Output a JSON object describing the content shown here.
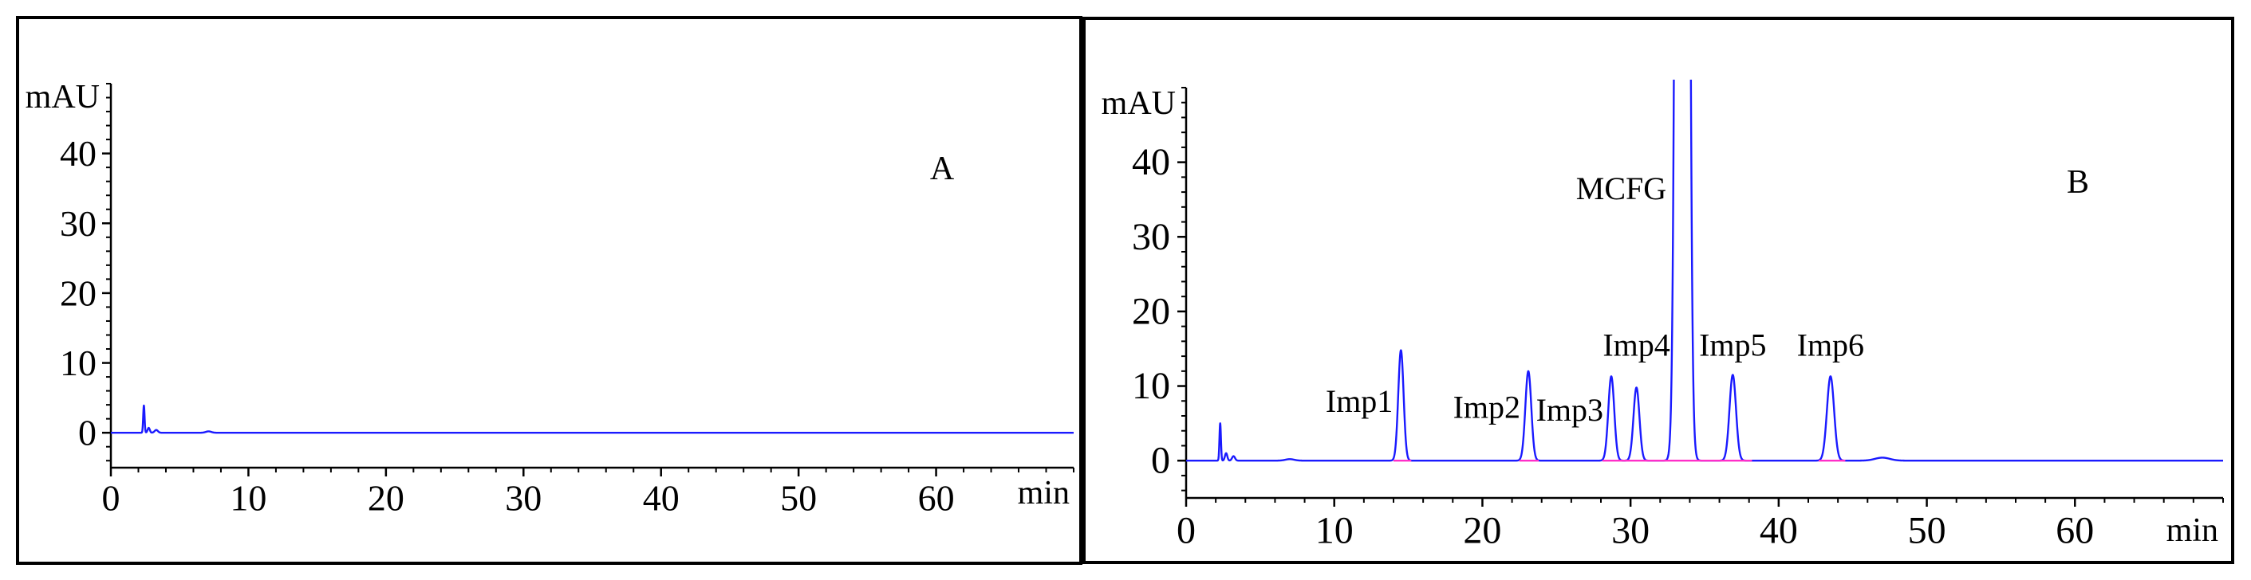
{
  "chart_data": [
    {
      "type": "line",
      "title": "A",
      "xlabel": "min",
      "ylabel": "mAU",
      "xlim": [
        0,
        70
      ],
      "ylim": [
        -5,
        50
      ],
      "xticks": [
        0,
        10,
        20,
        30,
        40,
        50,
        60
      ],
      "yticks": [
        0,
        10,
        20,
        30,
        40
      ],
      "minor_tick_step": {
        "x": 2,
        "y": 2
      },
      "grid": false,
      "series": [
        {
          "color": "#1a1aff",
          "baseline": 0,
          "peaks": [
            {
              "rt": 2.4,
              "height": 3.9,
              "sigma": 0.05
            },
            {
              "rt": 2.75,
              "height": 0.7,
              "sigma": 0.08
            },
            {
              "rt": 3.3,
              "height": 0.4,
              "sigma": 0.12
            },
            {
              "rt": 7.1,
              "height": 0.2,
              "sigma": 0.2
            }
          ]
        }
      ],
      "integration_baselines": [],
      "integration_baseline_color": "#ff2fc8"
    },
    {
      "type": "line",
      "title": "B",
      "xlabel": "min",
      "ylabel": "mAU",
      "xlim": [
        0,
        70
      ],
      "ylim": [
        -5,
        50
      ],
      "xticks": [
        0,
        10,
        20,
        30,
        40,
        50,
        60
      ],
      "yticks": [
        0,
        10,
        20,
        30,
        40
      ],
      "minor_tick_step": {
        "x": 2,
        "y": 2
      },
      "grid": false,
      "series": [
        {
          "color": "#1a1aff",
          "baseline": 0,
          "peaks": [
            {
              "rt": 2.3,
              "height": 5.0,
              "sigma": 0.05
            },
            {
              "rt": 2.7,
              "height": 1.0,
              "sigma": 0.08
            },
            {
              "rt": 3.2,
              "height": 0.6,
              "sigma": 0.1
            },
            {
              "rt": 7.0,
              "height": 0.2,
              "sigma": 0.3
            },
            {
              "rt": 14.5,
              "height": 14.8,
              "sigma": 0.18,
              "label": "Imp1",
              "label_above": false
            },
            {
              "rt": 23.1,
              "height": 12.0,
              "sigma": 0.2,
              "label": "Imp2",
              "label_above": false
            },
            {
              "rt": 28.7,
              "height": 11.3,
              "sigma": 0.2,
              "label": "Imp3",
              "label_above": false
            },
            {
              "rt": 30.4,
              "height": 9.8,
              "sigma": 0.2,
              "label": "Imp4",
              "label_above": true
            },
            {
              "rt": 33.5,
              "height": null,
              "off_scale": true,
              "sigma": 0.26,
              "label": "MCFG",
              "label_above": false
            },
            {
              "rt": 36.9,
              "height": 11.5,
              "sigma": 0.22,
              "label": "Imp5",
              "label_above": true
            },
            {
              "rt": 43.5,
              "height": 11.3,
              "sigma": 0.24,
              "label": "Imp6",
              "label_above": true
            },
            {
              "rt": 47.0,
              "height": 0.4,
              "sigma": 0.5
            }
          ]
        }
      ],
      "integration_baselines": [
        [
          14.0,
          15.2
        ],
        [
          22.5,
          23.8
        ],
        [
          28.1,
          38.2
        ],
        [
          42.7,
          44.5
        ]
      ],
      "integration_baseline_color": "#ff2fc8"
    }
  ]
}
